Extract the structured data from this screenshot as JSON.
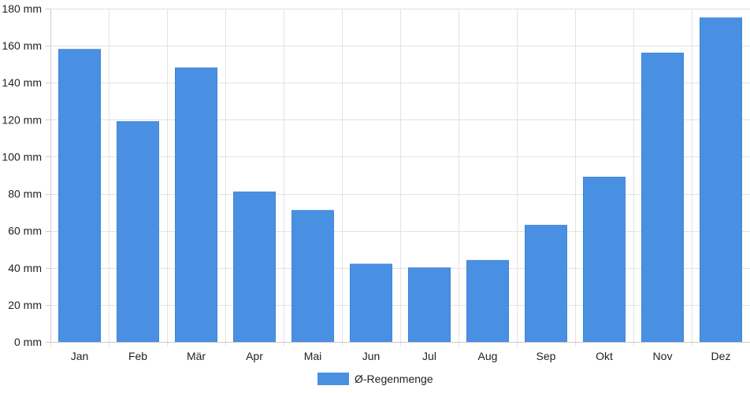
{
  "chart_data": {
    "type": "bar",
    "categories": [
      "Jan",
      "Feb",
      "Mär",
      "Apr",
      "Mai",
      "Jun",
      "Jul",
      "Aug",
      "Sep",
      "Okt",
      "Nov",
      "Dez"
    ],
    "series": [
      {
        "name": "Ø-Regenmenge",
        "values": [
          158,
          119,
          148,
          81,
          71,
          42,
          40,
          44,
          63,
          89,
          156,
          175
        ],
        "color": "#4a90e2"
      }
    ],
    "unit": "mm",
    "ylim": [
      0,
      180
    ],
    "yticks": [
      0,
      20,
      40,
      60,
      80,
      100,
      120,
      140,
      160,
      180
    ],
    "ytick_labels": [
      "0 mm",
      "20 mm",
      "40 mm",
      "60 mm",
      "80 mm",
      "100 mm",
      "120 mm",
      "140 mm",
      "160 mm",
      "180 mm"
    ],
    "grid": true,
    "legend_position": "bottom-center"
  }
}
